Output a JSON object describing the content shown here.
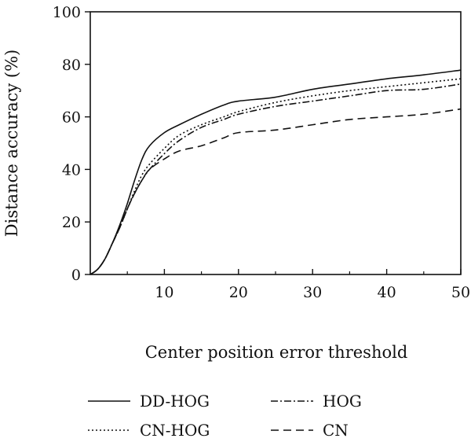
{
  "chart_data": {
    "type": "line",
    "title": "",
    "xlabel": "Center position error threshold",
    "ylabel": "Distance accuracy (%)",
    "xlim": [
      0,
      50
    ],
    "ylim": [
      0,
      100
    ],
    "xticks": [
      10,
      20,
      30,
      40,
      50
    ],
    "yticks": [
      0,
      20,
      40,
      60,
      80,
      100
    ],
    "x_tick_labels": [
      "10",
      "20",
      "30",
      "40",
      "50"
    ],
    "y_tick_labels": [
      "0",
      "20",
      "40",
      "60",
      "80",
      "100"
    ],
    "grid": false,
    "legend_position": "bottom",
    "x": [
      0,
      1,
      2,
      3,
      4,
      5,
      6,
      7,
      8,
      10,
      12,
      15,
      18,
      20,
      25,
      30,
      35,
      40,
      45,
      50
    ],
    "series": [
      {
        "name": "DD-HOG",
        "dash": "solid",
        "color": "#111111",
        "values": [
          0,
          2,
          6,
          12,
          19,
          27,
          36,
          44,
          49,
          54,
          57,
          61,
          64.5,
          66,
          67.5,
          70.5,
          72.5,
          74.5,
          76,
          77.8
        ]
      },
      {
        "name": "CN-HOG",
        "dash": "dotted",
        "color": "#111111",
        "values": [
          0,
          2,
          6,
          12,
          18,
          25,
          32,
          38,
          42,
          48,
          53,
          57,
          60,
          62,
          65.5,
          68,
          70,
          71.5,
          73,
          74.5
        ]
      },
      {
        "name": "HOG",
        "dash": "dashdot",
        "color": "#111111",
        "values": [
          0,
          2,
          6,
          12,
          18,
          25,
          31,
          36,
          40,
          46,
          51,
          56,
          59,
          61,
          64,
          66,
          68,
          70,
          70.5,
          72.5
        ]
      },
      {
        "name": "CN",
        "dash": "dashed",
        "color": "#111111",
        "values": [
          0,
          2,
          6,
          12,
          18,
          25,
          31,
          36,
          40,
          44,
          47,
          49,
          52,
          54,
          55,
          57,
          59,
          60,
          61,
          63
        ]
      }
    ]
  }
}
